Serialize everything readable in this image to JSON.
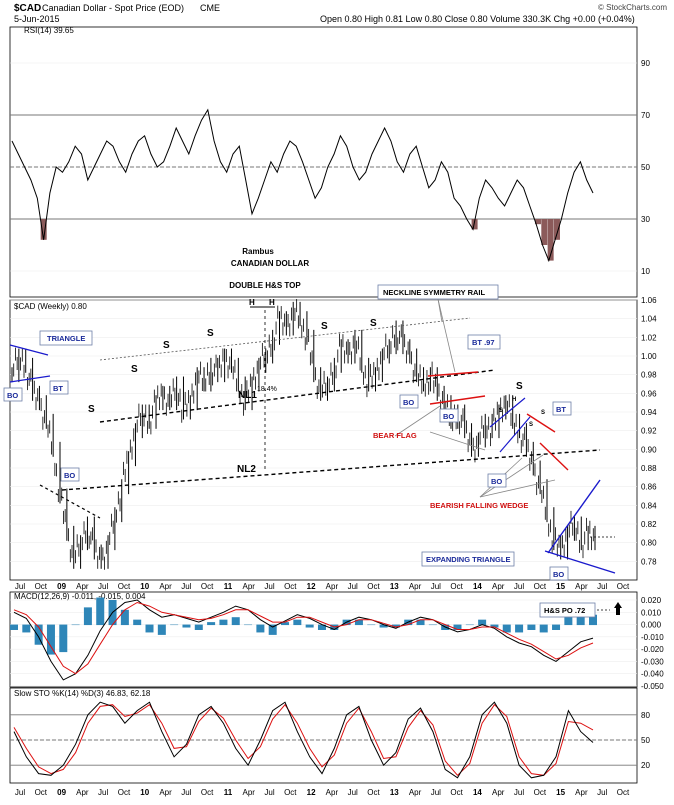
{
  "header": {
    "symbol": "$CAD",
    "name": "Canadian Dollar - Spot Price (EOD)",
    "exchange": "CME",
    "date": "5-Jun-2015",
    "quote_line": "Open 0.80  High 0.81  Low 0.80  Close 0.80  Volume 330.3K  Chg +0.00 (+0.04%)",
    "copyright": "© StockCharts.com"
  },
  "colors": {
    "price": "#000000",
    "annotation_blue": "#1a1acc",
    "annotation_red": "#dd1111",
    "macd_line": "#000000",
    "macd_signal": "#dd1111",
    "macd_hist": "#2e86b8",
    "rsi_fill": "#8b5a5a"
  },
  "chart_data": [
    {
      "type": "line",
      "title": "RSI(14) 39.65",
      "ylim": [
        0,
        100
      ],
      "y_ticks": [
        "10",
        "30",
        "50",
        "70",
        "90"
      ],
      "reference_lines": [
        30,
        50,
        70
      ],
      "values": [
        60,
        55,
        50,
        45,
        38,
        22,
        40,
        50,
        48,
        52,
        58,
        55,
        45,
        50,
        55,
        60,
        58,
        52,
        48,
        55,
        60,
        62,
        55,
        50,
        52,
        58,
        65,
        60,
        55,
        62,
        68,
        72,
        60,
        52,
        48,
        55,
        58,
        45,
        32,
        38,
        45,
        52,
        48,
        55,
        60,
        58,
        52,
        45,
        38,
        42,
        50,
        55,
        62,
        58,
        50,
        45,
        48,
        55,
        60,
        65,
        60,
        52,
        48,
        55,
        58,
        50,
        42,
        45,
        52,
        48,
        38,
        35,
        30,
        26,
        38,
        45,
        42,
        38,
        35,
        40,
        45,
        42,
        35,
        28,
        20,
        14,
        22,
        30,
        40,
        48,
        52,
        45,
        40
      ]
    },
    {
      "type": "line",
      "title": "$CAD (Weekly) 0.80",
      "ylim": [
        0.76,
        1.06
      ],
      "y_ticks": [
        "0.78",
        "0.80",
        "0.82",
        "0.84",
        "0.86",
        "0.88",
        "0.90",
        "0.92",
        "0.94",
        "0.96",
        "0.98",
        "1.00",
        "1.02",
        "1.04",
        "1.06"
      ],
      "x_ticks": [
        "Jul",
        "Oct",
        "09",
        "Apr",
        "Jul",
        "Oct",
        "10",
        "Apr",
        "Jul",
        "Oct",
        "11",
        "Apr",
        "Jul",
        "Oct",
        "12",
        "Apr",
        "Jul",
        "Oct",
        "13",
        "Apr",
        "Jul",
        "Oct",
        "14",
        "Apr",
        "Jul",
        "Oct",
        "15",
        "Apr",
        "Jul",
        "Oct"
      ],
      "values": [
        0.98,
        1.0,
        0.99,
        0.96,
        0.95,
        0.93,
        0.9,
        0.85,
        0.81,
        0.78,
        0.8,
        0.82,
        0.79,
        0.78,
        0.8,
        0.83,
        0.86,
        0.89,
        0.92,
        0.94,
        0.93,
        0.95,
        0.96,
        0.95,
        0.97,
        0.94,
        0.95,
        0.98,
        0.97,
        0.99,
        0.98,
        1.0,
        0.99,
        0.97,
        0.95,
        0.97,
        0.99,
        1.0,
        1.02,
        1.04,
        1.03,
        1.05,
        1.04,
        1.02,
        0.98,
        0.96,
        0.97,
        0.99,
        1.01,
        1.0,
        1.02,
        0.99,
        0.97,
        0.98,
        1.0,
        1.01,
        1.03,
        1.01,
        1.0,
        0.98,
        0.97,
        0.98,
        0.96,
        0.95,
        0.93,
        0.94,
        0.92,
        0.9,
        0.91,
        0.93,
        0.92,
        0.94,
        0.95,
        0.93,
        0.92,
        0.9,
        0.88,
        0.86,
        0.83,
        0.8,
        0.79,
        0.81,
        0.82,
        0.8,
        0.81,
        0.8
      ]
    },
    {
      "type": "line",
      "title": "MACD(12,26,9) -0.011, -0.015, 0.004",
      "ylim": [
        -0.05,
        0.02
      ],
      "y_ticks": [
        "0.020",
        "0.010",
        "0.000",
        "-0.010",
        "-0.020",
        "-0.030",
        "-0.040",
        "-0.050"
      ],
      "series": [
        {
          "name": "MACD(12,26,9)",
          "values": [
            0.01,
            0.005,
            -0.01,
            -0.03,
            -0.045,
            -0.04,
            -0.025,
            -0.005,
            0.01,
            0.018,
            0.02,
            0.012,
            0.006,
            0.008,
            0.005,
            0.002,
            0.006,
            0.01,
            0.015,
            0.012,
            0.004,
            -0.002,
            0.003,
            0.008,
            0.005,
            0.0,
            -0.004,
            0.002,
            0.006,
            0.004,
            0.0,
            -0.003,
            0.002,
            0.006,
            0.004,
            -0.002,
            -0.006,
            -0.004,
            0.0,
            -0.003,
            -0.01,
            -0.015,
            -0.018,
            -0.025,
            -0.03,
            -0.022,
            -0.014,
            -0.011
          ]
        },
        {
          "name": "signal",
          "values": [
            0.012,
            0.008,
            -0.002,
            -0.018,
            -0.034,
            -0.04,
            -0.032,
            -0.016,
            0.0,
            0.012,
            0.018,
            0.015,
            0.01,
            0.008,
            0.006,
            0.004,
            0.005,
            0.008,
            0.012,
            0.012,
            0.007,
            0.002,
            0.002,
            0.006,
            0.006,
            0.002,
            -0.002,
            0.0,
            0.004,
            0.004,
            0.001,
            -0.002,
            0.0,
            0.004,
            0.004,
            0.0,
            -0.004,
            -0.004,
            -0.002,
            -0.002,
            -0.007,
            -0.012,
            -0.016,
            -0.022,
            -0.028,
            -0.025,
            -0.019,
            -0.015
          ]
        }
      ],
      "histogram_label": "0.004"
    },
    {
      "type": "line",
      "title": "Slow STO %K(14) %D(3) 46.83, 62.18",
      "ylim": [
        0,
        100
      ],
      "y_ticks": [
        "20",
        "50",
        "80"
      ],
      "reference_lines": [
        20,
        50,
        80
      ],
      "series": [
        {
          "name": "%K(14)",
          "values": [
            60,
            30,
            10,
            8,
            20,
            45,
            80,
            95,
            90,
            70,
            85,
            95,
            60,
            30,
            45,
            80,
            90,
            70,
            40,
            20,
            50,
            85,
            95,
            60,
            30,
            10,
            40,
            80,
            90,
            50,
            20,
            35,
            75,
            88,
            60,
            15,
            5,
            30,
            80,
            95,
            70,
            20,
            5,
            8,
            30,
            85,
            60,
            47
          ]
        },
        {
          "name": "%D(3)",
          "values": [
            65,
            40,
            18,
            10,
            15,
            35,
            70,
            90,
            92,
            78,
            82,
            92,
            70,
            40,
            42,
            72,
            88,
            76,
            50,
            28,
            42,
            75,
            92,
            70,
            40,
            18,
            32,
            70,
            88,
            60,
            28,
            30,
            65,
            85,
            68,
            25,
            8,
            22,
            70,
            92,
            78,
            30,
            10,
            8,
            22,
            72,
            70,
            62
          ]
        }
      ]
    }
  ],
  "annotations": {
    "rambus": "Rambus",
    "canadian_dollar": "CANADIAN DOLLAR",
    "double_hs_top": "DOUBLE H&S TOP",
    "neckline_symmetry_rail": "NECKLINE SYMMETRY RAIL",
    "bt97": "BT .97",
    "triangle": "TRIANGLE",
    "bo": "BO",
    "bt": "BT",
    "bear_flag": "BEAR FLAG",
    "bearish_falling_wedge": "BEARISH FALLING WEDGE",
    "expanding_triangle": "EXPANDING TRIANGLE",
    "nl1": "NL1",
    "nl2": "NL2",
    "pct": "18.4%",
    "hs_po": "H&S PO .72",
    "s": "S",
    "h": "H"
  }
}
